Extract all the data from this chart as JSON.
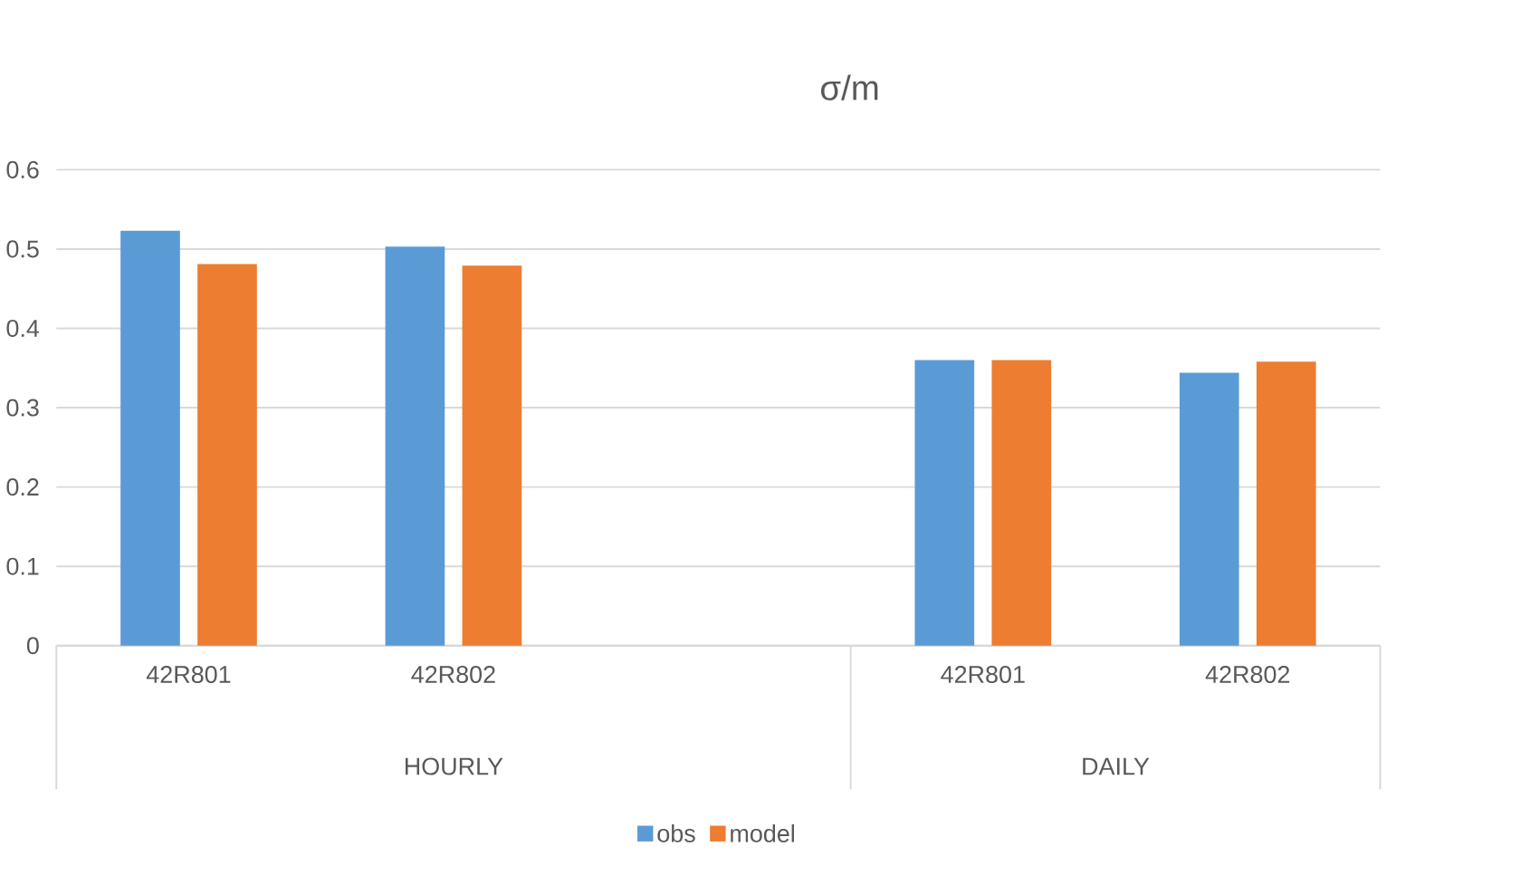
{
  "chart_data": {
    "type": "bar",
    "title": "σ/m",
    "categories": [
      "42R801",
      "42R802",
      null,
      "42R801",
      "42R802"
    ],
    "series": [
      {
        "name": "obs",
        "color": "#5b9bd5",
        "values": [
          0.523,
          0.503,
          null,
          0.36,
          0.344
        ]
      },
      {
        "name": "model",
        "color": "#ed7d31",
        "values": [
          0.481,
          0.479,
          null,
          0.36,
          0.358
        ]
      }
    ],
    "annotations": [
      "HOURLY",
      "DAILY"
    ],
    "ylim": [
      0,
      0.6
    ],
    "yticks": [
      0,
      0.1,
      0.2,
      0.3,
      0.4,
      0.5,
      0.6
    ],
    "grid": "y",
    "legend": "bottom"
  }
}
